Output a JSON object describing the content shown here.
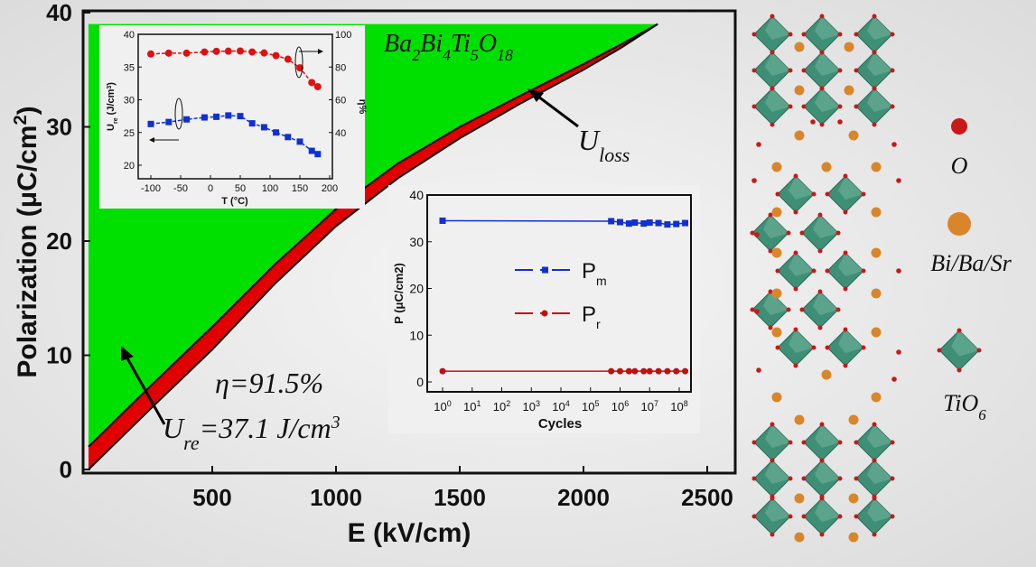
{
  "chart_data": [
    {
      "type": "area",
      "xlabel": "E (kV/cm)",
      "ylabel": "Polarization (μC/cm2)",
      "xlim": [
        0,
        2500
      ],
      "ylim": [
        0,
        40
      ],
      "xticks": [
        500,
        1000,
        1500,
        2000,
        2500
      ],
      "yticks": [
        0,
        10,
        20,
        30,
        40
      ],
      "colors": {
        "recoverable": "#00e000",
        "loss": "#e00000",
        "curve": "#000000"
      },
      "series": [
        {
          "role": "charge",
          "x": [
            0,
            250,
            500,
            750,
            1000,
            1250,
            1500,
            1750,
            2000,
            2150,
            2300
          ],
          "y": [
            2,
            7.3,
            12.5,
            17.9,
            22.8,
            26.8,
            30.0,
            32.8,
            35.5,
            37.2,
            39
          ]
        },
        {
          "role": "discharge",
          "x": [
            0,
            250,
            500,
            750,
            1000,
            1250,
            1500,
            1750,
            2000,
            2150,
            2300
          ],
          "y": [
            0,
            5.3,
            10.5,
            16.2,
            21.3,
            25.5,
            29.0,
            32.1,
            35.0,
            36.9,
            39
          ]
        }
      ],
      "annotations": {
        "formula": "Ba2Bi4Ti5O18",
        "u_loss": {
          "base": "U",
          "sub": "loss"
        },
        "efficiency": "η=91.5%",
        "u_re": {
          "base": "U",
          "sub": "re",
          "rest": "=37.1 J/cm",
          "sup": "3"
        }
      }
    },
    {
      "type": "line",
      "xlabel": "T (°C)",
      "ylabel": "Ure (J/cm3)",
      "y2label": "η%",
      "xlim": [
        -120,
        200
      ],
      "ylim": [
        18,
        40
      ],
      "y2lim": [
        12,
        100
      ],
      "xticks": [
        -100,
        -50,
        0,
        50,
        100,
        150,
        200
      ],
      "yticks": [
        20,
        25,
        30,
        35,
        40
      ],
      "y2ticks": [
        40,
        60,
        80,
        100
      ],
      "x": [
        -100,
        -70,
        -40,
        -10,
        10,
        30,
        50,
        70,
        90,
        110,
        130,
        150,
        170,
        180
      ],
      "series": [
        {
          "axis": "left",
          "color": "#1030d0",
          "marker": "square",
          "values": [
            26.3,
            26.6,
            27.0,
            27.3,
            27.4,
            27.6,
            27.5,
            26.4,
            25.8,
            25.0,
            24.3,
            23.6,
            22.2,
            21.7
          ]
        },
        {
          "axis": "right",
          "color": "#e01010",
          "marker": "circle",
          "values": [
            88.0,
            88.5,
            88.5,
            89.2,
            89.6,
            89.7,
            89.8,
            89.2,
            88.6,
            87.0,
            84.8,
            79.5,
            70.5,
            68.0
          ]
        }
      ]
    },
    {
      "type": "line",
      "xlabel": "Cycles",
      "ylabel": "P (μC/cm2)",
      "xscale": "log",
      "xlim": [
        0,
        8.3
      ],
      "ylim": [
        -2,
        40
      ],
      "xticks": [
        "10^0",
        "10^1",
        "10^2",
        "10^3",
        "10^4",
        "10^5",
        "10^6",
        "10^7",
        "10^8"
      ],
      "yticks": [
        0,
        10,
        20,
        30,
        40
      ],
      "legend": "center",
      "x_log10": [
        0,
        5.7,
        6.0,
        6.3,
        6.5,
        6.8,
        7.0,
        7.3,
        7.6,
        7.9,
        8.2
      ],
      "series": [
        {
          "name": "Pm",
          "label": {
            "base": "P",
            "sub": "m"
          },
          "color": "#1030d0",
          "marker": "square",
          "values": [
            34.5,
            34.4,
            34.2,
            33.9,
            34.1,
            33.9,
            34.1,
            34.0,
            33.7,
            33.8,
            34.0
          ]
        },
        {
          "name": "Pr",
          "label": {
            "base": "P",
            "sub": "r"
          },
          "color": "#c01010",
          "marker": "circle",
          "values": [
            2.3,
            2.3,
            2.3,
            2.3,
            2.3,
            2.3,
            2.3,
            2.3,
            2.3,
            2.3,
            2.3
          ]
        }
      ]
    }
  ],
  "structure_legend": [
    {
      "key": "O",
      "color": "#c81818"
    },
    {
      "key": "Bi/Ba/Sr",
      "color": "#d9862a"
    },
    {
      "key": "TiO",
      "sub": "6",
      "color": "#3f8f77"
    }
  ]
}
